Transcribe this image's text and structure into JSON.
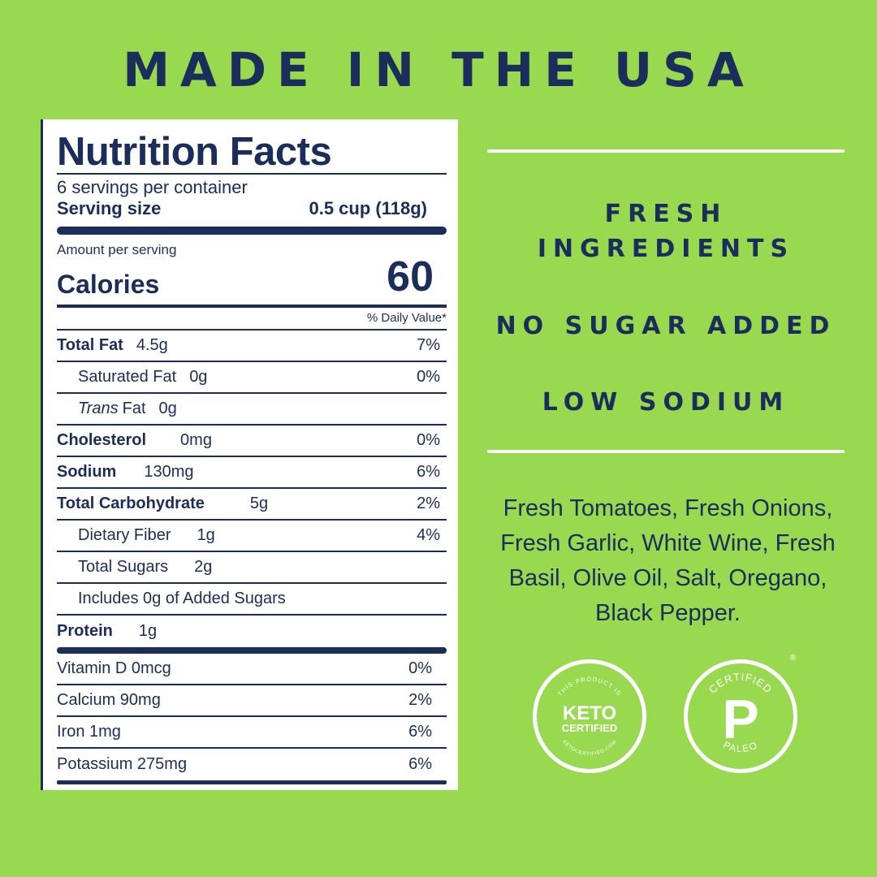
{
  "headline": "MADE IN THE USA",
  "nutrition": {
    "title": "Nutrition Facts",
    "servings": "6 servings per container",
    "serving_size_label": "Serving size",
    "serving_size_value": "0.5 cup (118g)",
    "amount_per_serving": "Amount per serving",
    "calories_label": "Calories",
    "calories_value": "60",
    "daily_value_header": "% Daily Value*",
    "rows": [
      {
        "label": "Total Fat",
        "amount": "4.5g",
        "pct": "7%"
      },
      {
        "label": "Saturated Fat",
        "amount": "0g",
        "pct": "0%"
      },
      {
        "label_italic": "Trans",
        "label": "Fat",
        "amount": "0g"
      },
      {
        "label": "Cholesterol",
        "amount": "0mg",
        "pct": "0%"
      },
      {
        "label": "Sodium",
        "amount": "130mg",
        "pct": "6%"
      },
      {
        "label": "Total Carbohydrate",
        "amount": "5g",
        "pct": "2%"
      },
      {
        "label": "Dietary Fiber",
        "amount": "1g",
        "pct": "4%"
      },
      {
        "label": "Total Sugars",
        "amount": "2g"
      },
      {
        "label": "Includes 0g of Added Sugars"
      },
      {
        "label": "Protein",
        "amount": "1g"
      }
    ],
    "vitamins": [
      {
        "label": "Vitamin D 0mcg",
        "pct": "0%"
      },
      {
        "label": "Calcium 90mg",
        "pct": "2%"
      },
      {
        "label": "Iron 1mg",
        "pct": "6%"
      },
      {
        "label": "Potassium 275mg",
        "pct": "6%"
      }
    ]
  },
  "features": {
    "fresh_line1": "FRESH",
    "fresh_line2": "INGREDIENTS",
    "no_sugar": "NO SUGAR ADDED",
    "low_sodium": "LOW SODIUM"
  },
  "ingredients": "Fresh Tomatoes, Fresh Onions, Fresh Garlic, White Wine, Fresh Basil, Olive Oil, Salt, Oregano, Black Pepper.",
  "badges": {
    "keto": {
      "top_text": "THIS PRODUCT IS",
      "line1": "KETO",
      "line2": "CERTIFIED",
      "bottom_text": "KETOCERTIFIED.COM"
    },
    "paleo": {
      "top_text": "CERTIFIED",
      "letter": "P",
      "bottom_text": "PALEO",
      "registered": "®"
    }
  },
  "colors": {
    "background": "#98d94f",
    "navy": "#1b2d5a",
    "white": "#ffffff"
  }
}
